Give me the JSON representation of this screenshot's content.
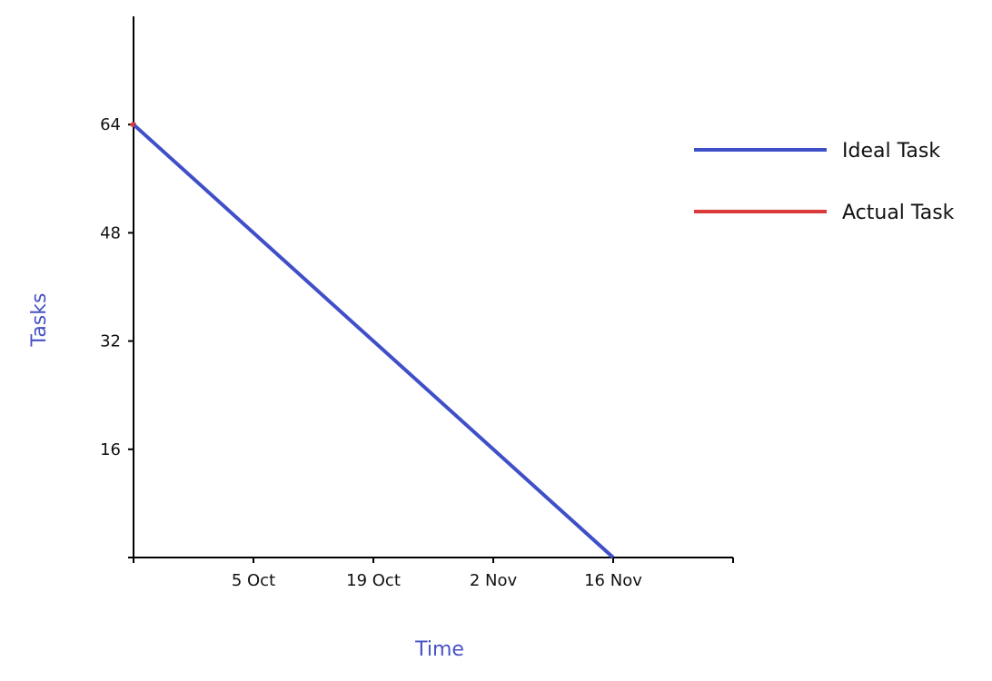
{
  "chart_data": {
    "type": "line",
    "title": "",
    "xlabel": "Time",
    "ylabel": "Tasks",
    "x_ticks": [
      "5 Oct",
      "19 Oct",
      "2 Nov",
      "16 Nov"
    ],
    "y_ticks": [
      16,
      32,
      48,
      64
    ],
    "xlim": [
      "2020-09-21",
      "2020-11-30"
    ],
    "ylim": [
      0,
      80
    ],
    "grid": false,
    "legend_position": "right",
    "series": [
      {
        "name": "Ideal Task",
        "color": "#3f4fc8",
        "points": [
          {
            "x": "2020-09-21",
            "y": 64
          },
          {
            "x": "2020-11-16",
            "y": 0
          }
        ]
      },
      {
        "name": "Actual Task",
        "color": "#d93a3a",
        "points": [
          {
            "x": "2020-09-21",
            "y": 64
          }
        ]
      }
    ],
    "axis_title_color": "#4752c4"
  }
}
